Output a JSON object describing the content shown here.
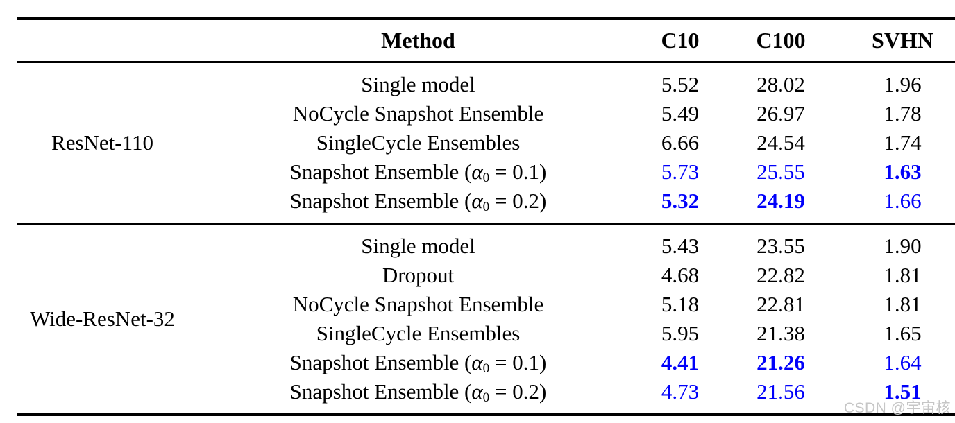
{
  "page": {
    "background": "#ffffff",
    "text_color": "#000000",
    "accent_blue": "#0101fa",
    "rule_color": "#000000"
  },
  "watermark": {
    "text": "CSDN @宇宙核",
    "color": "#c6c6c6"
  },
  "table": {
    "columns": [
      "Method",
      "C10",
      "C100",
      "SVHN"
    ],
    "sections": [
      {
        "group": "ResNet-110",
        "rows": [
          {
            "method": "Single model",
            "values": [
              {
                "v": "5.52"
              },
              {
                "v": "28.02"
              },
              {
                "v": "1.96"
              }
            ]
          },
          {
            "method": "NoCycle Snapshot Ensemble",
            "values": [
              {
                "v": "5.49"
              },
              {
                "v": "26.97"
              },
              {
                "v": "1.78"
              }
            ]
          },
          {
            "method": "SingleCycle Ensembles",
            "values": [
              {
                "v": "6.66"
              },
              {
                "v": "24.54"
              },
              {
                "v": "1.74"
              }
            ]
          },
          {
            "method": "Snapshot Ensemble (α₀ = 0.1)",
            "values": [
              {
                "v": "5.73",
                "blue": true
              },
              {
                "v": "25.55",
                "blue": true
              },
              {
                "v": "1.63",
                "blue": true,
                "bold": true
              }
            ]
          },
          {
            "method": "Snapshot Ensemble (α₀ = 0.2)",
            "values": [
              {
                "v": "5.32",
                "blue": true,
                "bold": true
              },
              {
                "v": "24.19",
                "blue": true,
                "bold": true
              },
              {
                "v": "1.66",
                "blue": true
              }
            ]
          }
        ]
      },
      {
        "group": "Wide-ResNet-32",
        "rows": [
          {
            "method": "Single model",
            "values": [
              {
                "v": "5.43"
              },
              {
                "v": "23.55"
              },
              {
                "v": "1.90"
              }
            ]
          },
          {
            "method": "Dropout",
            "values": [
              {
                "v": "4.68"
              },
              {
                "v": "22.82"
              },
              {
                "v": "1.81"
              }
            ]
          },
          {
            "method": "NoCycle Snapshot Ensemble",
            "values": [
              {
                "v": "5.18"
              },
              {
                "v": "22.81"
              },
              {
                "v": "1.81"
              }
            ]
          },
          {
            "method": "SingleCycle Ensembles",
            "values": [
              {
                "v": "5.95"
              },
              {
                "v": "21.38"
              },
              {
                "v": "1.65"
              }
            ]
          },
          {
            "method": "Snapshot Ensemble (α₀ = 0.1)",
            "values": [
              {
                "v": "4.41",
                "blue": true,
                "bold": true
              },
              {
                "v": "21.26",
                "blue": true,
                "bold": true
              },
              {
                "v": "1.64",
                "blue": true
              }
            ]
          },
          {
            "method": "Snapshot Ensemble (α₀ = 0.2)",
            "values": [
              {
                "v": "4.73",
                "blue": true
              },
              {
                "v": "21.56",
                "blue": true
              },
              {
                "v": "1.51",
                "blue": true,
                "bold": true
              }
            ]
          }
        ]
      }
    ]
  }
}
